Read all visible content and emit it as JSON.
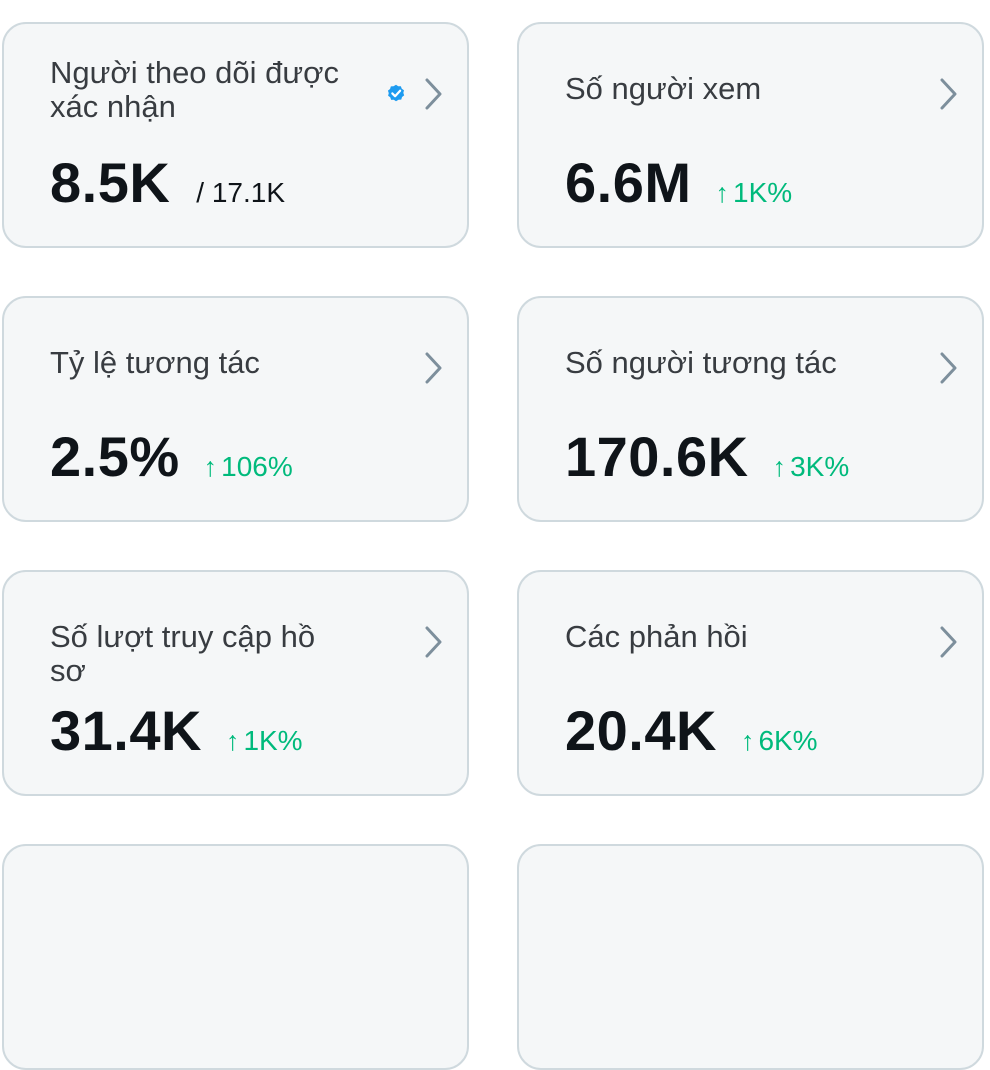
{
  "cards": [
    {
      "title": "Người theo dõi được xác nhận",
      "value": "8.5K",
      "secondary": "/ 17.1K",
      "verified": true
    },
    {
      "title": "Số người xem",
      "value": "6.6M",
      "change": "1K%"
    },
    {
      "title": "Tỷ lệ tương tác",
      "value": "2.5%",
      "change": "106%"
    },
    {
      "title": "Số người tương tác",
      "value": "170.6K",
      "change": "3K%"
    },
    {
      "title": "Số lượt truy cập hồ sơ",
      "value": "31.4K",
      "change": "1K%"
    },
    {
      "title": "Các phản hồi",
      "value": "20.4K",
      "change": "6K%"
    }
  ],
  "icons": {
    "chevron": "chevron-right-icon",
    "verified": "verified-badge-icon",
    "trend": "arrow-up-icon"
  },
  "colors": {
    "accent": "#1d9bf0",
    "positive": "#00ba7c",
    "text": "#0f1419",
    "card_bg": "#f5f7f8",
    "card_border": "#cfd9de",
    "chevron": "#7d8f9c"
  }
}
